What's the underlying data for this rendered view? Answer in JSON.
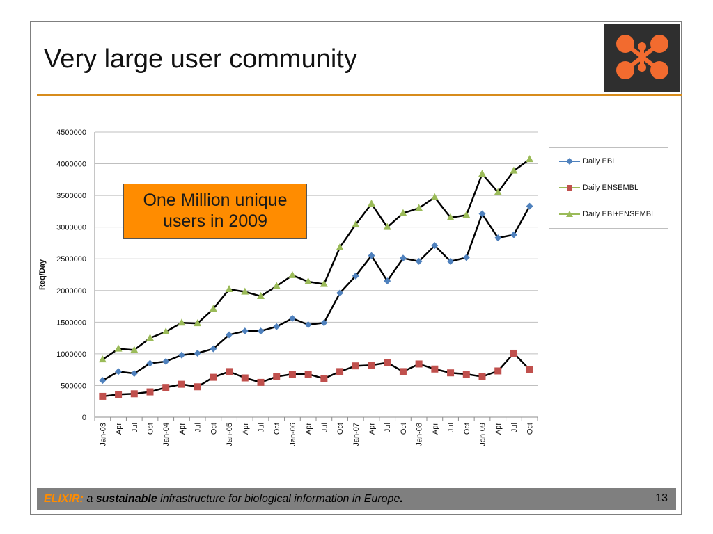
{
  "slide": {
    "title": "Very large user community",
    "callout": [
      "One Million unique",
      "users in 2009"
    ],
    "footer": {
      "elixir": "ELIXIR:",
      "a": " a ",
      "sustainable": "sustainable",
      "rest": " infrastructure for biological information in Europe",
      "period": "."
    },
    "page_number": "13"
  },
  "colors": {
    "accent": "#d78c1c",
    "callout_bg": "#ff8c00",
    "footer_bg": "#7f7f7f",
    "logo_bg": "#2f2f2f",
    "logo_circles": "#f26b2f",
    "series_ebi": "#4f81bd",
    "series_ensembl": "#c0504d",
    "series_combined": "#9bbb59"
  },
  "chart_data": {
    "type": "line",
    "ylabel": "Req/Day",
    "xlabel": "",
    "ylim": [
      0,
      4500000
    ],
    "yticks": [
      0,
      500000,
      1000000,
      1500000,
      2000000,
      2500000,
      3000000,
      3500000,
      4000000,
      4500000
    ],
    "grid": true,
    "legend_position": "right",
    "x_tick_labels": [
      "Jan-03",
      "Apr",
      "Jul",
      "Oct",
      "Jan-04",
      "Apr",
      "Jul",
      "Oct",
      "Jan-05",
      "Apr",
      "Jul",
      "Oct",
      "Jan-06",
      "Apr",
      "Jul",
      "Oct",
      "Jan-07",
      "Apr",
      "Jul",
      "Oct",
      "Jan-08",
      "Apr",
      "Jul",
      "Oct",
      "Jan-09",
      "Apr",
      "Jul",
      "Oct"
    ],
    "series": [
      {
        "name": "Daily EBI",
        "marker": "diamond",
        "values": [
          580000,
          720000,
          690000,
          850000,
          880000,
          980000,
          1010000,
          1080000,
          1300000,
          1360000,
          1360000,
          1430000,
          1560000,
          1460000,
          1490000,
          1960000,
          2230000,
          2550000,
          2150000,
          2510000,
          2460000,
          2710000,
          2460000,
          2520000,
          3210000,
          2830000,
          2880000,
          3330000
        ]
      },
      {
        "name": "Daily ENSEMBL",
        "marker": "square",
        "values": [
          330000,
          360000,
          370000,
          400000,
          470000,
          520000,
          480000,
          630000,
          720000,
          620000,
          550000,
          640000,
          680000,
          680000,
          610000,
          720000,
          810000,
          820000,
          860000,
          720000,
          840000,
          760000,
          700000,
          680000,
          640000,
          730000,
          1010000,
          750000
        ]
      },
      {
        "name": "Daily EBI+ENSEMBL",
        "marker": "triangle",
        "values": [
          910000,
          1080000,
          1060000,
          1250000,
          1350000,
          1490000,
          1480000,
          1710000,
          2020000,
          1980000,
          1910000,
          2070000,
          2240000,
          2140000,
          2100000,
          2680000,
          3040000,
          3370000,
          3000000,
          3220000,
          3300000,
          3470000,
          3150000,
          3190000,
          3840000,
          3550000,
          3890000,
          4070000
        ]
      }
    ]
  }
}
